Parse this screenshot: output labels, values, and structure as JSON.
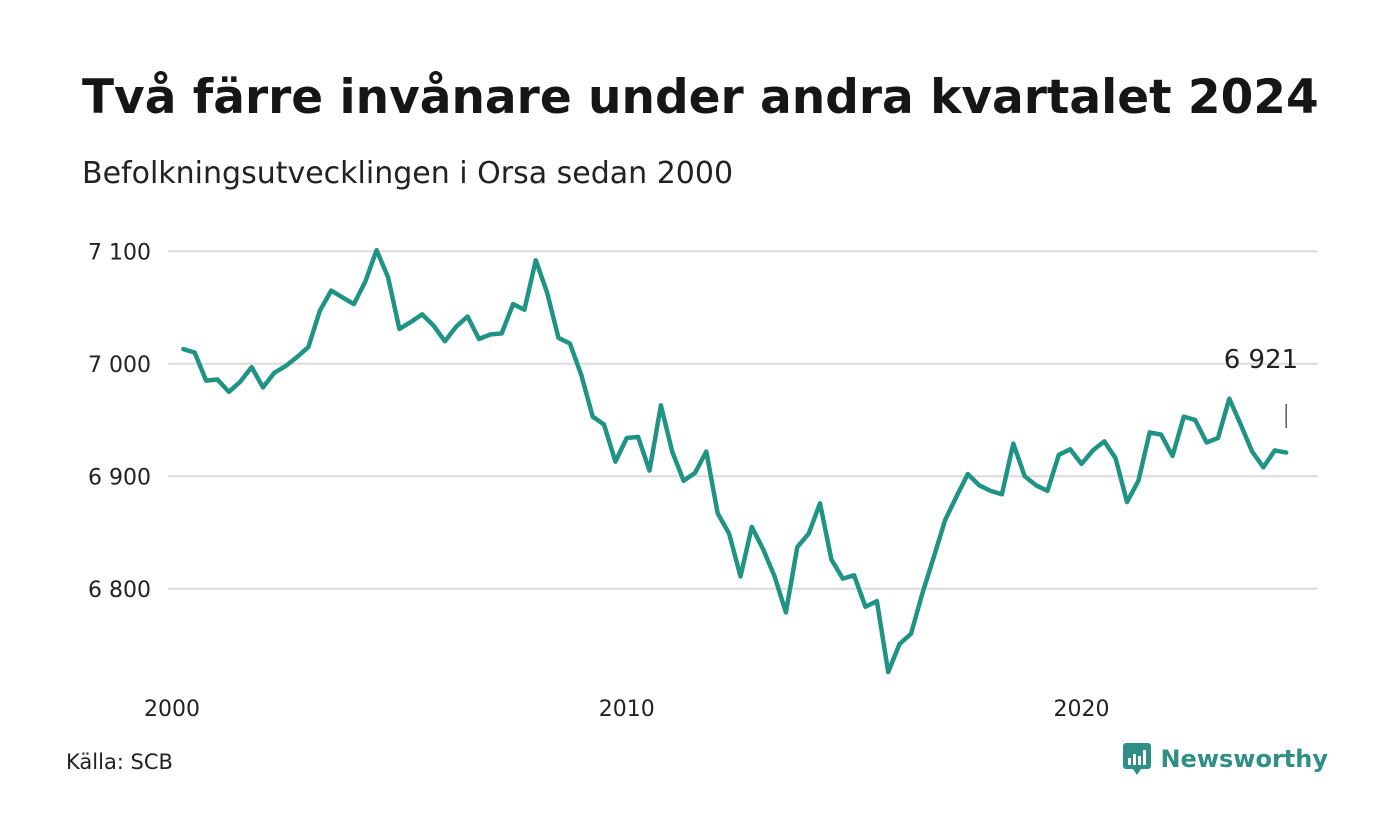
{
  "title": "Två färre invånare under andra kvartalet 2024",
  "subtitle": "Befolkningsutvecklingen i Orsa sedan 2000",
  "source": "Källa: SCB",
  "brand": {
    "name": "Newsworthy",
    "icon": "newsworthy-logo-icon",
    "color": "#2f8f84"
  },
  "chart_data": {
    "type": "line",
    "title": "Två färre invånare under andra kvartalet 2024",
    "subtitle": "Befolkningsutvecklingen i Orsa sedan 2000",
    "xlabel": "",
    "ylabel": "",
    "x_ticks": [
      {
        "value": 2000,
        "label": "2000"
      },
      {
        "value": 2010,
        "label": "2010"
      },
      {
        "value": 2020,
        "label": "2020"
      }
    ],
    "y_ticks": [
      {
        "value": 6800,
        "label": "6 800"
      },
      {
        "value": 6900,
        "label": "6 900"
      },
      {
        "value": 7000,
        "label": "7 000"
      },
      {
        "value": 7100,
        "label": "7 100"
      }
    ],
    "xlim": [
      2000,
      2025.2
    ],
    "ylim": [
      6710,
      7110
    ],
    "grid": "horizontal",
    "line_color": "#1f9384",
    "end_label": {
      "text": "6 921",
      "value": 6921
    },
    "series": [
      {
        "x": [
          2000.25,
          2000.5,
          2000.75,
          2001.0,
          2001.25,
          2001.5,
          2001.75,
          2002.0,
          2002.25,
          2002.5,
          2002.75,
          2003.0,
          2003.25,
          2003.5,
          2003.75,
          2004.0,
          2004.25,
          2004.5,
          2004.75,
          2005.0,
          2005.25,
          2005.5,
          2005.75,
          2006.0,
          2006.25,
          2006.5,
          2006.75,
          2007.0,
          2007.25,
          2007.5,
          2007.75,
          2008.0,
          2008.25,
          2008.5,
          2008.75,
          2009.0,
          2009.25,
          2009.5,
          2009.75,
          2010.0,
          2010.25,
          2010.5,
          2010.75,
          2011.0,
          2011.25,
          2011.5,
          2011.75,
          2012.0,
          2012.25,
          2012.5,
          2012.75,
          2013.0,
          2013.25,
          2013.5,
          2013.75,
          2014.0,
          2014.25,
          2014.5,
          2014.75,
          2015.0,
          2015.25,
          2015.5,
          2015.75,
          2016.0,
          2016.25,
          2016.5,
          2016.75,
          2017.0,
          2017.25,
          2017.5,
          2017.75,
          2018.0,
          2018.25,
          2018.5,
          2018.75,
          2019.0,
          2019.25,
          2019.5,
          2019.75,
          2020.0,
          2020.25,
          2020.5,
          2020.75,
          2021.0,
          2021.25,
          2021.5,
          2021.75,
          2022.0,
          2022.25,
          2022.5,
          2022.75,
          2023.0,
          2023.25,
          2023.5,
          2023.75,
          2024.0,
          2024.25,
          2024.5
        ],
        "values": [
          7013,
          7010,
          6985,
          6986,
          6975,
          6984,
          6997,
          6979,
          6992,
          6998,
          7006,
          7015,
          7047,
          7065,
          7059,
          7053,
          7073,
          7101,
          7077,
          7031,
          7037,
          7044,
          7034,
          7020,
          7033,
          7042,
          7022,
          7026,
          7027,
          7053,
          7048,
          7092,
          7063,
          7023,
          7018,
          6990,
          6953,
          6946,
          6913,
          6934,
          6935,
          6905,
          6963,
          6922,
          6896,
          6903,
          6922,
          6867,
          6849,
          6811,
          6855,
          6835,
          6811,
          6779,
          6837,
          6849,
          6876,
          6826,
          6809,
          6812,
          6784,
          6789,
          6726,
          6751,
          6760,
          6796,
          6828,
          6861,
          6882,
          6902,
          6892,
          6887,
          6884,
          6929,
          6900,
          6892,
          6887,
          6919,
          6924,
          6911,
          6923,
          6931,
          6916,
          6877,
          6896,
          6939,
          6937,
          6918,
          6953,
          6950,
          6930,
          6934,
          6969,
          6946,
          6922,
          6908,
          6923,
          6921
        ]
      }
    ]
  }
}
